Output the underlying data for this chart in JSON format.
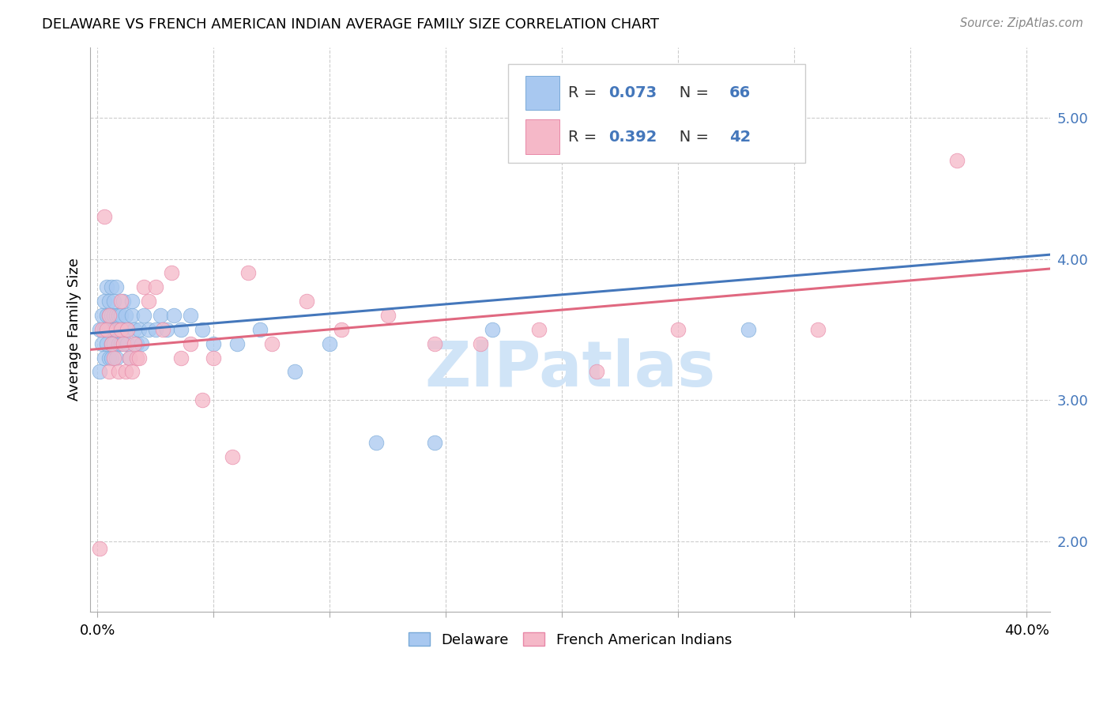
{
  "title": "DELAWARE VS FRENCH AMERICAN INDIAN AVERAGE FAMILY SIZE CORRELATION CHART",
  "source": "Source: ZipAtlas.com",
  "ylabel": "Average Family Size",
  "y_ticks": [
    2.0,
    3.0,
    4.0,
    5.0
  ],
  "y_min": 1.5,
  "y_max": 5.5,
  "x_min": -0.003,
  "x_max": 0.41,
  "delaware_color": "#a8c8f0",
  "delaware_edge": "#7aaad8",
  "french_color": "#f5b8c8",
  "french_edge": "#e888a8",
  "trend_delaware_color": "#4477bb",
  "trend_french_color": "#e06880",
  "delaware_x": [
    0.001,
    0.001,
    0.002,
    0.002,
    0.003,
    0.003,
    0.003,
    0.004,
    0.004,
    0.004,
    0.005,
    0.005,
    0.005,
    0.005,
    0.006,
    0.006,
    0.006,
    0.006,
    0.006,
    0.007,
    0.007,
    0.007,
    0.007,
    0.008,
    0.008,
    0.008,
    0.008,
    0.009,
    0.009,
    0.009,
    0.01,
    0.01,
    0.01,
    0.011,
    0.011,
    0.012,
    0.012,
    0.013,
    0.013,
    0.014,
    0.015,
    0.015,
    0.016,
    0.017,
    0.018,
    0.019,
    0.02,
    0.022,
    0.025,
    0.027,
    0.03,
    0.033,
    0.036,
    0.04,
    0.045,
    0.05,
    0.06,
    0.07,
    0.085,
    0.1,
    0.12,
    0.145,
    0.17,
    0.2,
    0.24,
    0.28
  ],
  "delaware_y": [
    3.2,
    3.5,
    3.6,
    3.4,
    3.7,
    3.5,
    3.3,
    3.8,
    3.6,
    3.4,
    3.7,
    3.5,
    3.3,
    3.6,
    3.8,
    3.6,
    3.4,
    3.5,
    3.3,
    3.6,
    3.7,
    3.5,
    3.4,
    3.6,
    3.8,
    3.5,
    3.3,
    3.5,
    3.6,
    3.4,
    3.5,
    3.6,
    3.4,
    3.7,
    3.4,
    3.5,
    3.6,
    3.4,
    3.5,
    3.3,
    3.6,
    3.7,
    3.5,
    3.4,
    3.5,
    3.4,
    3.6,
    3.5,
    3.5,
    3.6,
    3.5,
    3.6,
    3.5,
    3.6,
    3.5,
    3.4,
    3.4,
    3.5,
    3.2,
    3.4,
    2.7,
    2.7,
    3.5,
    4.8,
    4.8,
    3.5
  ],
  "french_x": [
    0.001,
    0.002,
    0.003,
    0.004,
    0.005,
    0.005,
    0.006,
    0.007,
    0.008,
    0.009,
    0.01,
    0.01,
    0.011,
    0.012,
    0.013,
    0.014,
    0.015,
    0.016,
    0.017,
    0.018,
    0.02,
    0.022,
    0.025,
    0.028,
    0.032,
    0.036,
    0.04,
    0.045,
    0.05,
    0.058,
    0.065,
    0.075,
    0.09,
    0.105,
    0.125,
    0.145,
    0.165,
    0.19,
    0.215,
    0.25,
    0.31,
    0.37
  ],
  "french_y": [
    1.95,
    3.5,
    4.3,
    3.5,
    3.6,
    3.2,
    3.4,
    3.3,
    3.5,
    3.2,
    3.5,
    3.7,
    3.4,
    3.2,
    3.5,
    3.3,
    3.2,
    3.4,
    3.3,
    3.3,
    3.8,
    3.7,
    3.8,
    3.5,
    3.9,
    3.3,
    3.4,
    3.0,
    3.3,
    2.6,
    3.9,
    3.4,
    3.7,
    3.5,
    3.6,
    3.4,
    3.4,
    3.5,
    3.2,
    3.5,
    3.5,
    4.7
  ],
  "legend_r1": "0.073",
  "legend_n1": "66",
  "legend_r2": "0.392",
  "legend_n2": "42",
  "legend_blue_color": "#4477bb",
  "legend_pink_color": "#e888a8",
  "legend_text_color": "#333333",
  "legend_num_color": "#4477bb",
  "watermark_text": "ZIPatlas",
  "watermark_color": "#d0e4f7",
  "bottom_legend_del": "Delaware",
  "bottom_legend_fr": "French American Indians"
}
